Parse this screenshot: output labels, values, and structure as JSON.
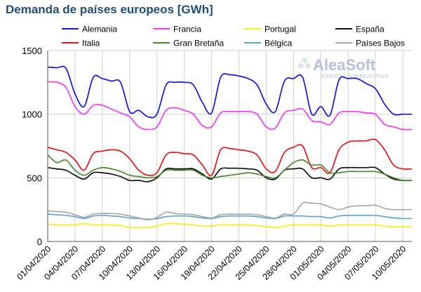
{
  "chart_data": {
    "type": "line",
    "title": "Demanda de países europeos [GWh]",
    "xlabel": "",
    "ylabel": "",
    "ylim": [
      0,
      1500
    ],
    "yticks": [
      0,
      500,
      1000,
      1500
    ],
    "ytick_labels": [
      "0",
      "500",
      "1000",
      "1500"
    ],
    "x": [
      1,
      2,
      3,
      4,
      5,
      6,
      7,
      8,
      9,
      10,
      11,
      12,
      13,
      14,
      15,
      16,
      17,
      18,
      19,
      20,
      21,
      22,
      23,
      24,
      25,
      26,
      27,
      28,
      29,
      30,
      31,
      32,
      33,
      34,
      35,
      36,
      37,
      38,
      39,
      40,
      41
    ],
    "xticks": [
      1,
      4,
      7,
      10,
      13,
      16,
      19,
      22,
      25,
      28,
      31,
      34,
      37,
      40
    ],
    "xtick_labels": [
      "01/04/2020",
      "04/04/2020",
      "07/04/2020",
      "10/04/2020",
      "13/04/2020",
      "16/04/2020",
      "19/04/2020",
      "22/04/2020",
      "25/04/2020",
      "28/04/2020",
      "01/05/2020",
      "04/05/2020",
      "07/05/2020",
      "10/05/2020"
    ],
    "grid": true,
    "legend": "top",
    "watermark": {
      "brand": "AleaSoft",
      "tagline": "ENERGY FORECASTING"
    },
    "series": [
      {
        "name": "Alemania",
        "color": "#1414e6",
        "values": [
          1370,
          1365,
          1360,
          1160,
          1060,
          1290,
          1280,
          1260,
          1250,
          1020,
          1030,
          980,
          1000,
          1230,
          1250,
          1250,
          1230,
          1090,
          1010,
          1290,
          1310,
          1300,
          1280,
          1230,
          1080,
          1020,
          1260,
          1280,
          1290,
          1000,
          1060,
          990,
          1270,
          1280,
          1280,
          1240,
          1200,
          1080,
          1000,
          1000,
          1000
        ]
      },
      {
        "name": "Francia",
        "color": "#f23cf2",
        "values": [
          1255,
          1250,
          1210,
          1060,
          1000,
          1070,
          1070,
          1040,
          1010,
          980,
          900,
          880,
          900,
          1030,
          1050,
          1030,
          1000,
          910,
          900,
          1010,
          1020,
          1020,
          1020,
          1000,
          900,
          890,
          1010,
          1030,
          1040,
          950,
          940,
          920,
          1010,
          1020,
          1020,
          1010,
          1000,
          920,
          900,
          880,
          880
        ]
      },
      {
        "name": "Portugal",
        "color": "#f0f014",
        "values": [
          135,
          130,
          130,
          130,
          140,
          130,
          130,
          130,
          125,
          110,
          110,
          110,
          120,
          140,
          140,
          135,
          130,
          120,
          120,
          130,
          130,
          130,
          130,
          125,
          115,
          110,
          120,
          130,
          130,
          130,
          130,
          120,
          130,
          130,
          130,
          130,
          130,
          120,
          115,
          115,
          115
        ]
      },
      {
        "name": "España",
        "color": "#111111",
        "values": [
          580,
          570,
          560,
          520,
          490,
          540,
          540,
          530,
          510,
          480,
          480,
          470,
          500,
          570,
          570,
          570,
          570,
          530,
          490,
          570,
          575,
          575,
          570,
          560,
          500,
          490,
          560,
          570,
          570,
          500,
          500,
          490,
          570,
          580,
          580,
          580,
          580,
          530,
          490,
          480,
          480
        ]
      },
      {
        "name": "Italia",
        "color": "#e61414",
        "values": [
          740,
          720,
          700,
          640,
          560,
          690,
          710,
          720,
          710,
          650,
          560,
          520,
          540,
          680,
          700,
          690,
          680,
          600,
          520,
          720,
          730,
          720,
          710,
          680,
          570,
          550,
          700,
          740,
          750,
          580,
          580,
          540,
          720,
          780,
          790,
          790,
          800,
          720,
          600,
          570,
          570
        ]
      },
      {
        "name": "Gran Bretaña",
        "color": "#4a8a2a",
        "values": [
          680,
          620,
          640,
          560,
          520,
          560,
          580,
          570,
          550,
          520,
          510,
          500,
          510,
          560,
          560,
          560,
          560,
          520,
          500,
          510,
          520,
          530,
          540,
          530,
          510,
          500,
          560,
          620,
          640,
          600,
          600,
          540,
          540,
          550,
          550,
          550,
          550,
          530,
          500,
          480,
          480
        ]
      },
      {
        "name": "Bélgica",
        "color": "#5fa8c8",
        "values": [
          215,
          210,
          205,
          195,
          180,
          200,
          205,
          200,
          195,
          185,
          180,
          175,
          180,
          195,
          200,
          200,
          195,
          185,
          180,
          195,
          200,
          200,
          200,
          195,
          185,
          180,
          200,
          200,
          200,
          195,
          195,
          185,
          200,
          205,
          205,
          205,
          205,
          195,
          185,
          180,
          180
        ]
      },
      {
        "name": "Países Bajos",
        "color": "#aaaaaa",
        "values": [
          240,
          235,
          230,
          210,
          190,
          215,
          220,
          220,
          215,
          200,
          185,
          170,
          190,
          230,
          220,
          215,
          210,
          195,
          185,
          210,
          215,
          215,
          215,
          210,
          195,
          185,
          215,
          215,
          300,
          300,
          295,
          270,
          250,
          270,
          280,
          280,
          285,
          260,
          250,
          250,
          250
        ]
      }
    ]
  }
}
